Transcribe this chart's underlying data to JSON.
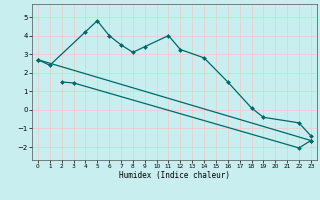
{
  "xlabel": "Humidex (Indice chaleur)",
  "xlim": [
    -0.5,
    23.5
  ],
  "ylim": [
    -2.7,
    5.7
  ],
  "yticks": [
    -2,
    -1,
    0,
    1,
    2,
    3,
    4,
    5
  ],
  "xticks": [
    0,
    1,
    2,
    3,
    4,
    5,
    6,
    7,
    8,
    9,
    10,
    11,
    12,
    13,
    14,
    15,
    16,
    17,
    18,
    19,
    20,
    21,
    22,
    23
  ],
  "background_color": "#c8eef0",
  "grid_color": "#f0c8c8",
  "line_color": "#006868",
  "line1_x": [
    0,
    1,
    4,
    5,
    6,
    7,
    8,
    9,
    11,
    12,
    14,
    16,
    18,
    19,
    22,
    23
  ],
  "line1_y": [
    2.7,
    2.4,
    4.2,
    4.8,
    4.0,
    3.5,
    3.1,
    3.4,
    4.0,
    3.25,
    2.8,
    1.5,
    0.1,
    -0.4,
    -0.7,
    -1.4
  ],
  "line2_x": [
    2,
    3,
    22,
    23
  ],
  "line2_y": [
    1.5,
    1.45,
    -2.05,
    -1.65
  ],
  "line3_x": [
    0,
    23
  ],
  "line3_y": [
    2.7,
    -1.65
  ]
}
